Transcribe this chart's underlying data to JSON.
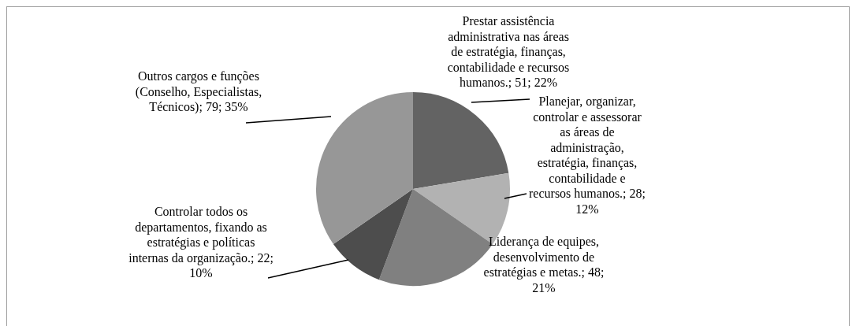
{
  "chart_data": {
    "type": "pie",
    "categories": [
      "Prestar assistência administrativa nas áreas de estratégia, finanças, contabilidade e recursos humanos.",
      "Planejar, organizar, controlar e assessorar as áreas de administração, estratégia, finanças, contabilidade e recursos humanos.",
      "Liderança de equipes, desenvolvimento de estratégias e metas.",
      "Controlar todos os departamentos, fixando as estratégias e políticas internas da organização.",
      "Outros cargos e funções (Conselho, Especialistas, Técnicos)"
    ],
    "values": [
      51,
      28,
      48,
      22,
      79
    ],
    "colors": [
      "#636363",
      "#b2b2b2",
      "#808080",
      "#4d4d4d",
      "#979797"
    ],
    "value_labels": [
      "51; 22%",
      "28; 12%",
      "48; 21%",
      "22; 10%",
      "79; 35%"
    ]
  }
}
